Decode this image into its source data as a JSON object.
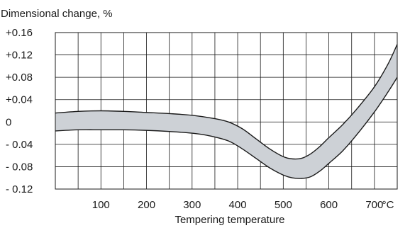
{
  "chart_data": {
    "type": "area",
    "title": "Dimensional change, %",
    "xlabel": "Tempering temperature",
    "x_unit": "°C",
    "xlim": [
      0,
      750
    ],
    "ylim": [
      -0.12,
      0.16
    ],
    "grid": true,
    "x_ticks": [
      {
        "value": 100,
        "label": "100"
      },
      {
        "value": 200,
        "label": "200"
      },
      {
        "value": 300,
        "label": "300"
      },
      {
        "value": 400,
        "label": "400"
      },
      {
        "value": 500,
        "label": "500"
      },
      {
        "value": 600,
        "label": "600"
      },
      {
        "value": 700,
        "label": "700"
      }
    ],
    "x_grid": [
      50,
      100,
      150,
      200,
      250,
      300,
      350,
      400,
      450,
      500,
      550,
      600,
      650,
      700
    ],
    "y_ticks": [
      {
        "value": 0.16,
        "label": "+0.16"
      },
      {
        "value": 0.12,
        "label": "+0.12"
      },
      {
        "value": 0.08,
        "label": "+0.08"
      },
      {
        "value": 0.04,
        "label": "+0.04"
      },
      {
        "value": 0,
        "label": "0"
      },
      {
        "value": -0.04,
        "label": "- 0.04"
      },
      {
        "value": -0.08,
        "label": "- 0.08"
      },
      {
        "value": -0.12,
        "label": "- 0.12"
      }
    ],
    "band_color": "#cdd1d6",
    "line_color": "#1a1a1a",
    "series": [
      {
        "role": "upper",
        "x": [
          0,
          50,
          100,
          150,
          200,
          250,
          300,
          350,
          380,
          410,
          440,
          470,
          500,
          520,
          540,
          560,
          580,
          600,
          630,
          660,
          700,
          730,
          750
        ],
        "values": [
          0.016,
          0.019,
          0.02,
          0.019,
          0.017,
          0.015,
          0.012,
          0.006,
          0.0,
          -0.012,
          -0.03,
          -0.048,
          -0.062,
          -0.066,
          -0.065,
          -0.057,
          -0.044,
          -0.028,
          -0.005,
          0.022,
          0.063,
          0.104,
          0.139
        ]
      },
      {
        "role": "lower",
        "x": [
          0,
          50,
          100,
          150,
          200,
          250,
          300,
          340,
          380,
          410,
          440,
          470,
          500,
          520,
          540,
          560,
          580,
          600,
          630,
          660,
          700,
          730,
          750
        ],
        "values": [
          -0.016,
          -0.014,
          -0.014,
          -0.014,
          -0.015,
          -0.017,
          -0.02,
          -0.025,
          -0.034,
          -0.048,
          -0.065,
          -0.082,
          -0.095,
          -0.1,
          -0.101,
          -0.098,
          -0.088,
          -0.074,
          -0.052,
          -0.024,
          0.018,
          0.054,
          0.08
        ]
      }
    ]
  }
}
